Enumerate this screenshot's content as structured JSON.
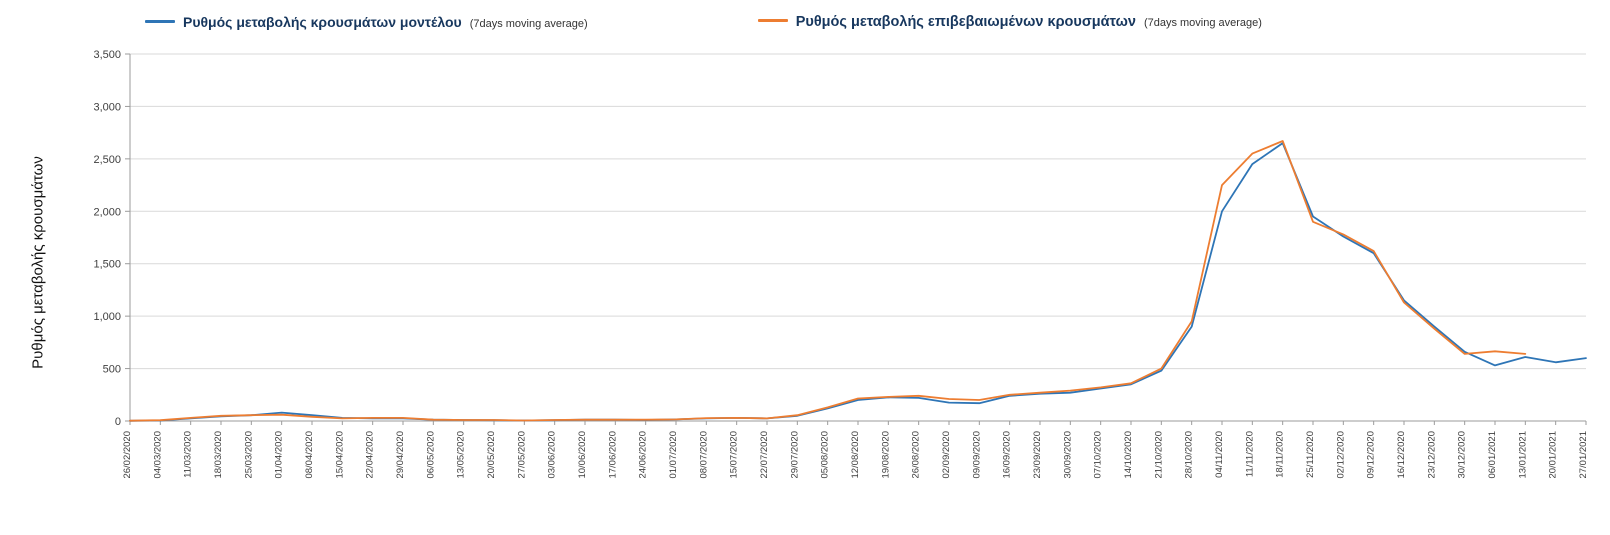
{
  "legend": [
    {
      "label": "Ρυθμός μεταβολής κρουσμάτων μοντέλου",
      "suffix": "(7days moving average)",
      "color": "#2E75B6"
    },
    {
      "label": "Ρυθμός μεταβολής επιβεβαιωμένων κρουσμάτων",
      "suffix": "(7days moving average)",
      "color": "#ED7D31"
    }
  ],
  "colors": {
    "model_line": "#2E75B6",
    "confirmed_line": "#ED7D31",
    "gridline": "#D9D9D9",
    "axis": "#9b9b9b",
    "tick_text": "#404040"
  },
  "chart_data": {
    "type": "line",
    "title": "",
    "xlabel": "",
    "ylabel": "Ρυθμός μεταβολής κρουσμάτων",
    "ylim": [
      0,
      3500
    ],
    "ytick_step": 500,
    "grid": true,
    "legend_position": "top",
    "x": [
      "26/02/2020",
      "04/03/2020",
      "11/03/2020",
      "18/03/2020",
      "25/03/2020",
      "01/04/2020",
      "08/04/2020",
      "15/04/2020",
      "22/04/2020",
      "29/04/2020",
      "06/05/2020",
      "13/05/2020",
      "20/05/2020",
      "27/05/2020",
      "03/06/2020",
      "10/06/2020",
      "17/06/2020",
      "24/06/2020",
      "01/07/2020",
      "08/07/2020",
      "15/07/2020",
      "22/07/2020",
      "29/07/2020",
      "05/08/2020",
      "12/08/2020",
      "19/08/2020",
      "26/08/2020",
      "02/09/2020",
      "09/09/2020",
      "16/09/2020",
      "23/09/2020",
      "30/09/2020",
      "07/10/2020",
      "14/10/2020",
      "21/10/2020",
      "28/10/2020",
      "04/11/2020",
      "11/11/2020",
      "18/11/2020",
      "25/11/2020",
      "02/12/2020",
      "09/12/2020",
      "16/12/2020",
      "23/12/2020",
      "30/12/2020",
      "06/01/2021",
      "13/01/2021",
      "20/01/2021",
      "27/01/2021"
    ],
    "series": [
      {
        "name": "Ρυθμός μεταβολής κρουσμάτων μοντέλου (7days moving average)",
        "color": "#2E75B6",
        "values": [
          2,
          5,
          25,
          45,
          55,
          80,
          55,
          30,
          25,
          25,
          12,
          10,
          8,
          5,
          8,
          12,
          12,
          10,
          15,
          25,
          30,
          25,
          50,
          120,
          200,
          225,
          220,
          175,
          170,
          240,
          260,
          270,
          310,
          350,
          480,
          900,
          2000,
          2450,
          2650,
          1950,
          1760,
          1600,
          1150,
          900,
          660,
          530,
          610,
          560,
          600
        ]
      },
      {
        "name": "Ρυθμός μεταβολής επιβεβαιωμένων κρουσμάτων (7days moving average)",
        "color": "#ED7D31",
        "values": [
          3,
          8,
          30,
          50,
          55,
          60,
          40,
          25,
          30,
          30,
          12,
          10,
          10,
          5,
          10,
          12,
          12,
          12,
          15,
          28,
          30,
          25,
          55,
          130,
          215,
          230,
          240,
          210,
          200,
          250,
          270,
          290,
          320,
          360,
          500,
          950,
          2250,
          2550,
          2670,
          1900,
          1780,
          1620,
          1130,
          880,
          640,
          665,
          640,
          null,
          null
        ]
      }
    ]
  }
}
